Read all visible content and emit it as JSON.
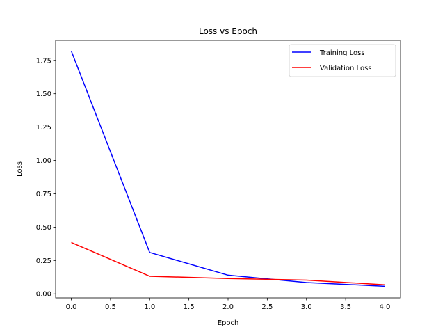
{
  "chart_data": {
    "type": "line",
    "title": "Loss vs Epoch",
    "xlabel": "Epoch",
    "ylabel": "Loss",
    "xlim": [
      -0.2,
      4.2
    ],
    "ylim": [
      -0.03,
      1.9
    ],
    "xticks": [
      0.0,
      0.5,
      1.0,
      1.5,
      2.0,
      2.5,
      3.0,
      3.5,
      4.0
    ],
    "xtick_labels": [
      "0.0",
      "0.5",
      "1.0",
      "1.5",
      "2.0",
      "2.5",
      "3.0",
      "3.5",
      "4.0"
    ],
    "yticks": [
      0.0,
      0.25,
      0.5,
      0.75,
      1.0,
      1.25,
      1.5,
      1.75
    ],
    "ytick_labels": [
      "0.00",
      "0.25",
      "0.50",
      "0.75",
      "1.00",
      "1.25",
      "1.50",
      "1.75"
    ],
    "grid": false,
    "legend_position": "top-right",
    "x": [
      0,
      1,
      2,
      3,
      4
    ],
    "series": [
      {
        "name": "Training Loss",
        "color": "#0000ff",
        "values": [
          1.82,
          0.31,
          0.14,
          0.085,
          0.057
        ]
      },
      {
        "name": "Validation Loss",
        "color": "#ff0000",
        "values": [
          0.385,
          0.132,
          0.115,
          0.103,
          0.068
        ]
      }
    ]
  }
}
